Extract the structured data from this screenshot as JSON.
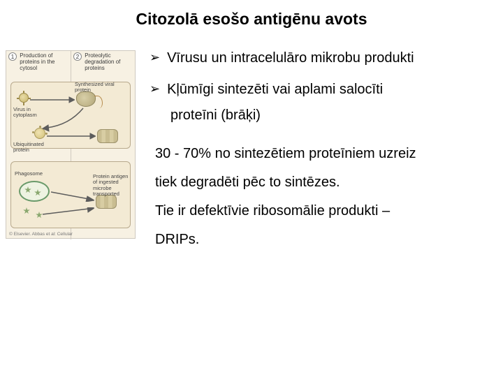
{
  "title": {
    "text": "Citozolā esošo antigēnu avots",
    "fontsize": 23
  },
  "bullets": [
    {
      "marker": "➢",
      "text": "Vīrusu un intracelulāro mikrobu produkti"
    },
    {
      "marker": "➢",
      "text": "Kļūmīgi sintezēti vai aplami salocīti"
    }
  ],
  "bullet_cont": "proteīni (brāķi)",
  "paragraph": [
    "30 - 70% no sintezētiem proteīniem uzreiz",
    "tiek degradēti pēc to sintēzes.",
    "Tie ir defektīvie ribosomālie produkti –",
    "DRIPs."
  ],
  "body_fontsize": 20,
  "bullet_marker_fontsize": 18,
  "colors": {
    "text": "#000000",
    "background": "#ffffff",
    "figure_bg": "#f7f1e3",
    "figure_border": "#cfc9bf"
  },
  "figure": {
    "panels": [
      {
        "num": "1",
        "caption": "Production of proteins in the cytosol"
      },
      {
        "num": "2",
        "caption": "Proteolytic degradation of proteins"
      }
    ],
    "labels": {
      "virus": "Virus in cytoplasm",
      "synth": "Synthesized viral protein",
      "ubiq": "Ubiquitinated protein",
      "phago": "Phagosome",
      "protant": "Protein antigen of ingested  microbe transported"
    },
    "copyright": "© Elsevier. Abbas et al: Cellular"
  }
}
